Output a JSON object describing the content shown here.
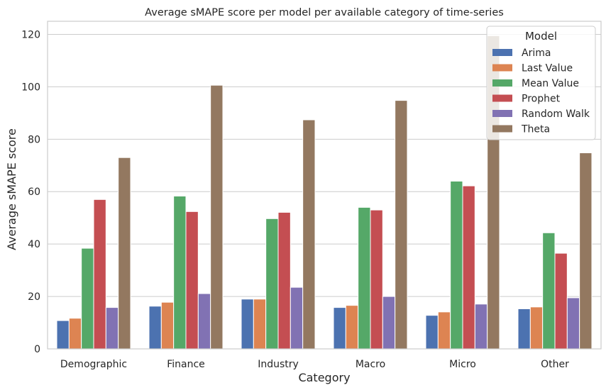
{
  "chart_data": {
    "type": "bar",
    "title": "Average sMAPE score per model per available category of time-series",
    "xlabel": "Category",
    "ylabel": "Average sMAPE score",
    "ylim": [
      0,
      125
    ],
    "yticks": [
      0,
      20,
      40,
      60,
      80,
      100,
      120
    ],
    "grid": true,
    "legend": {
      "title": "Model",
      "placement": "top-right"
    },
    "categories": [
      "Demographic",
      "Finance",
      "Industry",
      "Macro",
      "Micro",
      "Other"
    ],
    "series": [
      {
        "name": "Arima",
        "color": "#4c72b0",
        "values": [
          10.8,
          16.3,
          19.0,
          15.8,
          12.8,
          15.3
        ]
      },
      {
        "name": "Last Value",
        "color": "#dd8452",
        "values": [
          11.7,
          17.8,
          19.0,
          16.6,
          14.1,
          16.0
        ]
      },
      {
        "name": "Mean Value",
        "color": "#55a868",
        "values": [
          38.4,
          58.3,
          49.7,
          54.0,
          64.0,
          44.3
        ]
      },
      {
        "name": "Prophet",
        "color": "#c44e52",
        "values": [
          57.0,
          52.4,
          52.1,
          53.0,
          62.2,
          36.5
        ]
      },
      {
        "name": "Random Walk",
        "color": "#8172b3",
        "values": [
          15.8,
          21.1,
          23.5,
          20.0,
          17.1,
          19.5
        ]
      },
      {
        "name": "Theta",
        "color": "#937860",
        "values": [
          73.0,
          100.6,
          87.4,
          94.8,
          119.5,
          74.8
        ]
      }
    ]
  }
}
